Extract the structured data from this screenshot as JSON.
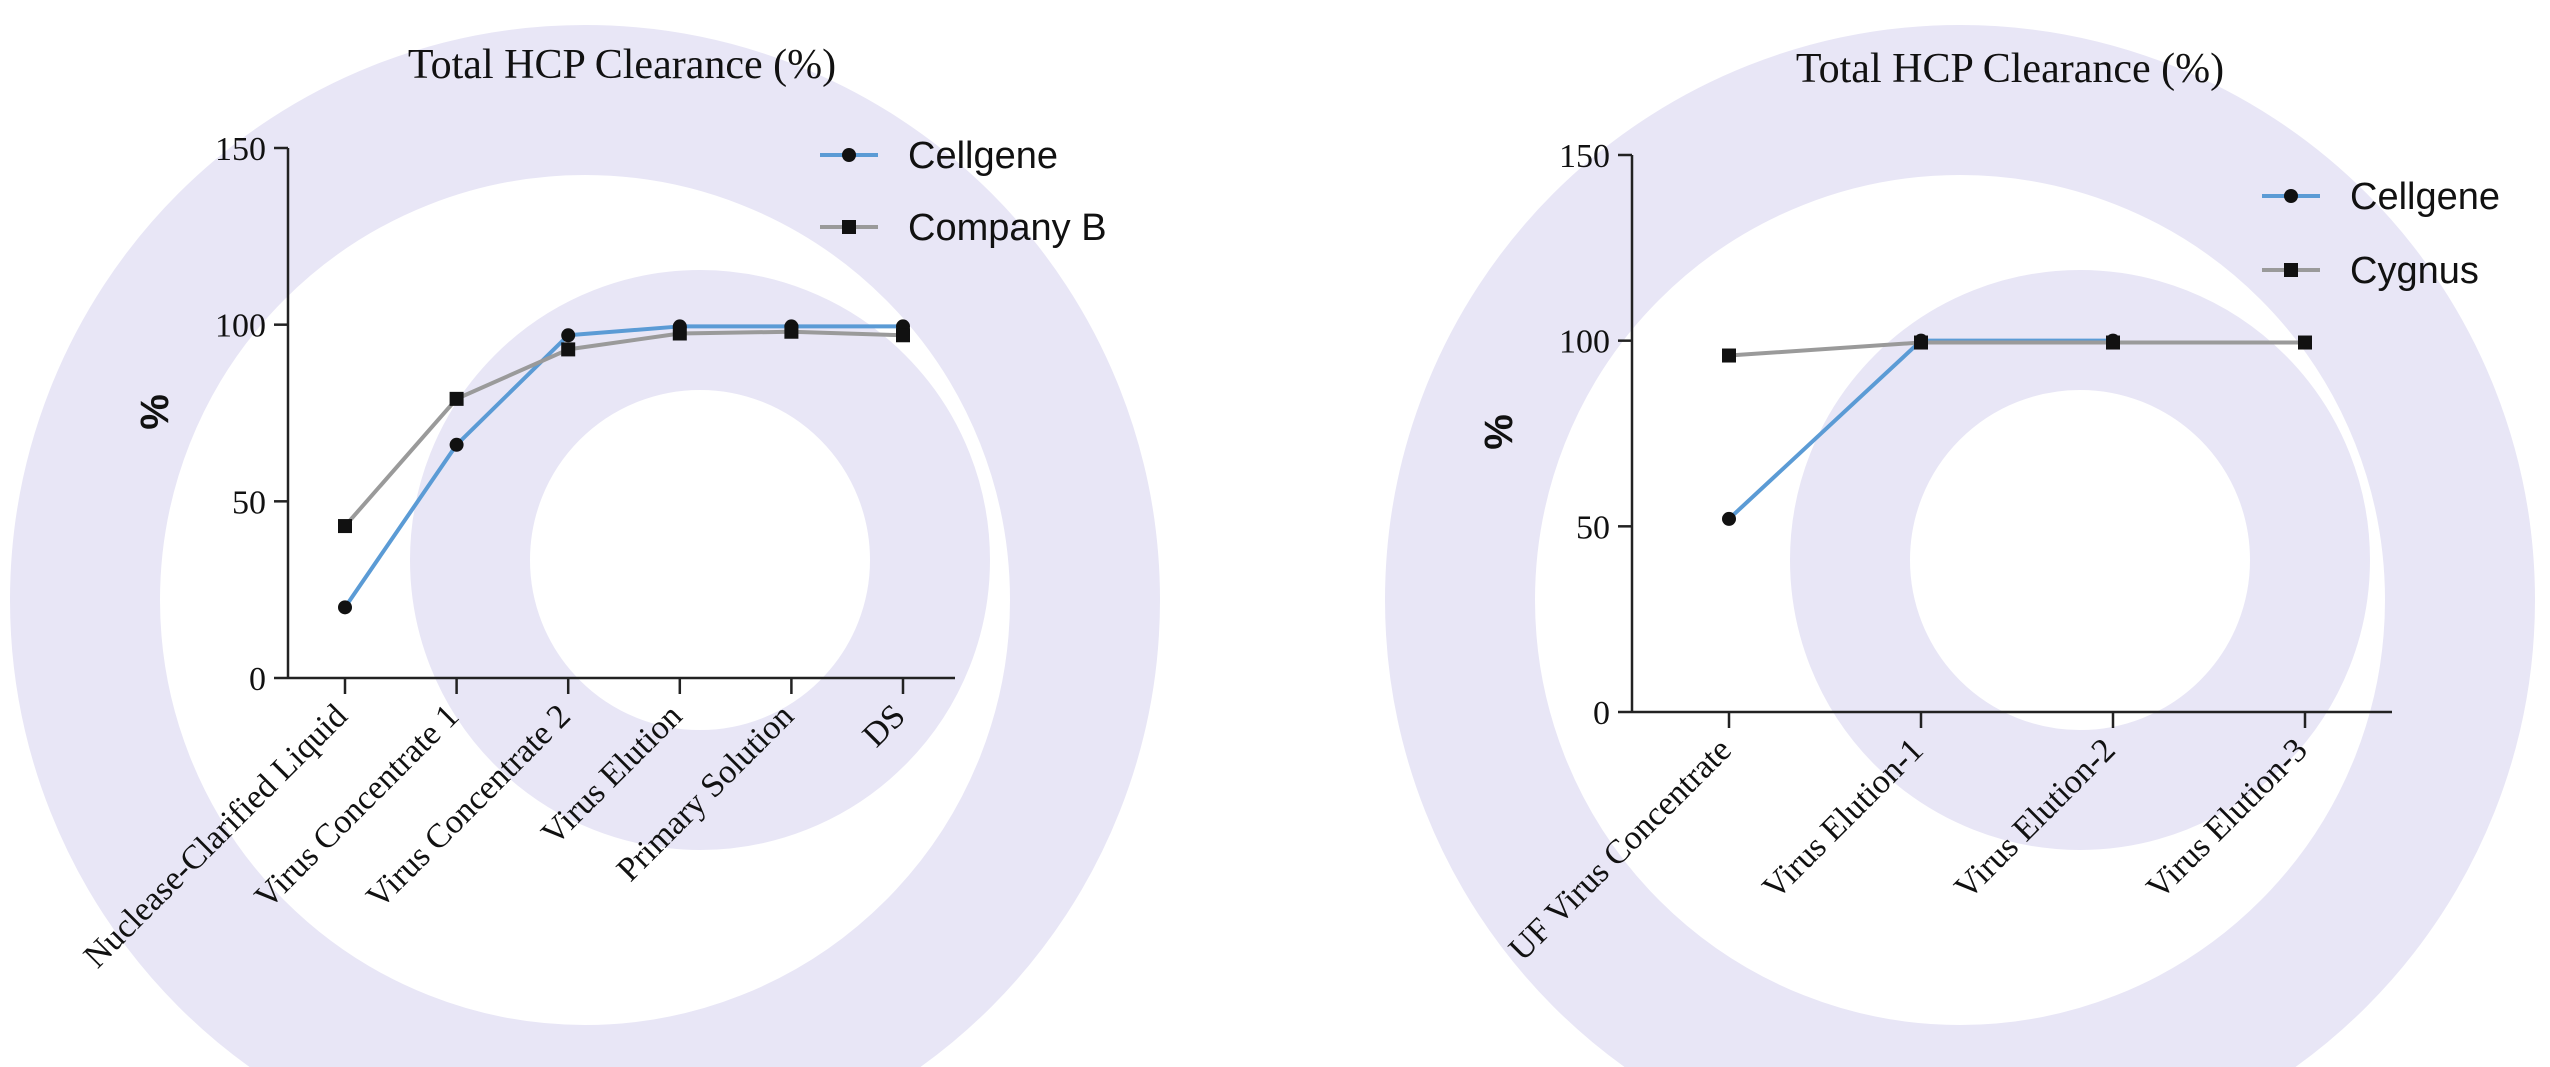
{
  "chart_data": [
    {
      "type": "line",
      "title": "Total HCP Clearance (%)",
      "ylabel": "%",
      "xlabel": "",
      "ylim": [
        0,
        150
      ],
      "yticks": [
        0,
        50,
        100,
        150
      ],
      "categories": [
        "Nuclease-Clarified Liquid",
        "Virus Concentrate 1",
        "Virus Concentrate 2",
        "Virus Elution",
        "Primary Solution",
        "DS"
      ],
      "legend_position": "top-right",
      "series": [
        {
          "name": "Cellgene",
          "marker": "circle",
          "color": "#5b9bd5",
          "values": [
            20,
            66,
            97,
            99.5,
            99.5,
            99.5
          ]
        },
        {
          "name": "Company B",
          "marker": "square",
          "color": "#9a9a9a",
          "values": [
            43,
            79,
            93,
            97.5,
            98,
            97
          ]
        }
      ]
    },
    {
      "type": "line",
      "title": "Total HCP Clearance (%)",
      "ylabel": "%",
      "xlabel": "",
      "ylim": [
        0,
        150
      ],
      "yticks": [
        0,
        50,
        100,
        150
      ],
      "categories": [
        "UF Virus Concentrate",
        "Virus Elution-1",
        "Virus Elution-2",
        "Virus Elution-3"
      ],
      "legend_position": "top-right",
      "series": [
        {
          "name": "Cellgene",
          "marker": "circle",
          "color": "#5b9bd5",
          "values": [
            52,
            100,
            100,
            null
          ]
        },
        {
          "name": "Cygnus",
          "marker": "square",
          "color": "#9a9a9a",
          "values": [
            96,
            99.5,
            99.5,
            99.5
          ]
        }
      ]
    }
  ],
  "watermark": {
    "color": "#e8e6f6"
  }
}
